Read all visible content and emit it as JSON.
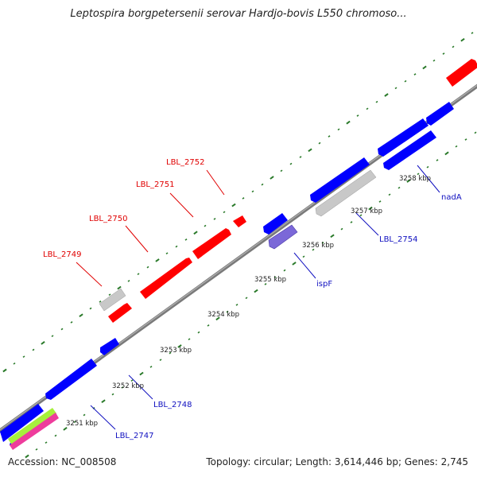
{
  "title": "Leptospira borgpetersenii serovar Hardjo-bovis L550 chromoso...",
  "footer": {
    "accession_label": "Accession:",
    "accession": "NC_008508",
    "topology_label": "Topology:",
    "topology": "circular",
    "length_label": "Length:",
    "length": "3,614,446 bp",
    "genes_label": "Genes:",
    "genes": "2,745"
  },
  "colors": {
    "forward_gene": "#ff0000",
    "reverse_gene": "#0000ff",
    "pseudo_gene": "#c8c8c8",
    "purple_gene": "#7b68d8",
    "rna_green": "#a6f03c",
    "rna_pink": "#ee3c9c",
    "backbone": "#7a7a7a",
    "tick": "#2a7a2a",
    "forward_label": "#e00000",
    "reverse_label": "#1010c0"
  },
  "scale_labels": [
    "3251 kbp",
    "3252 kbp",
    "3253 kbp",
    "3254 kbp",
    "3255 kbp",
    "3256 kbp",
    "3257 kbp",
    "3258 kbp"
  ],
  "forward_labels": [
    "LBL_2749",
    "LBL_2750",
    "LBL_2751",
    "LBL_2752"
  ],
  "reverse_labels": [
    "LBL_2747",
    "LBL_2748",
    "ispF",
    "LBL_2754",
    "nadA"
  ]
}
